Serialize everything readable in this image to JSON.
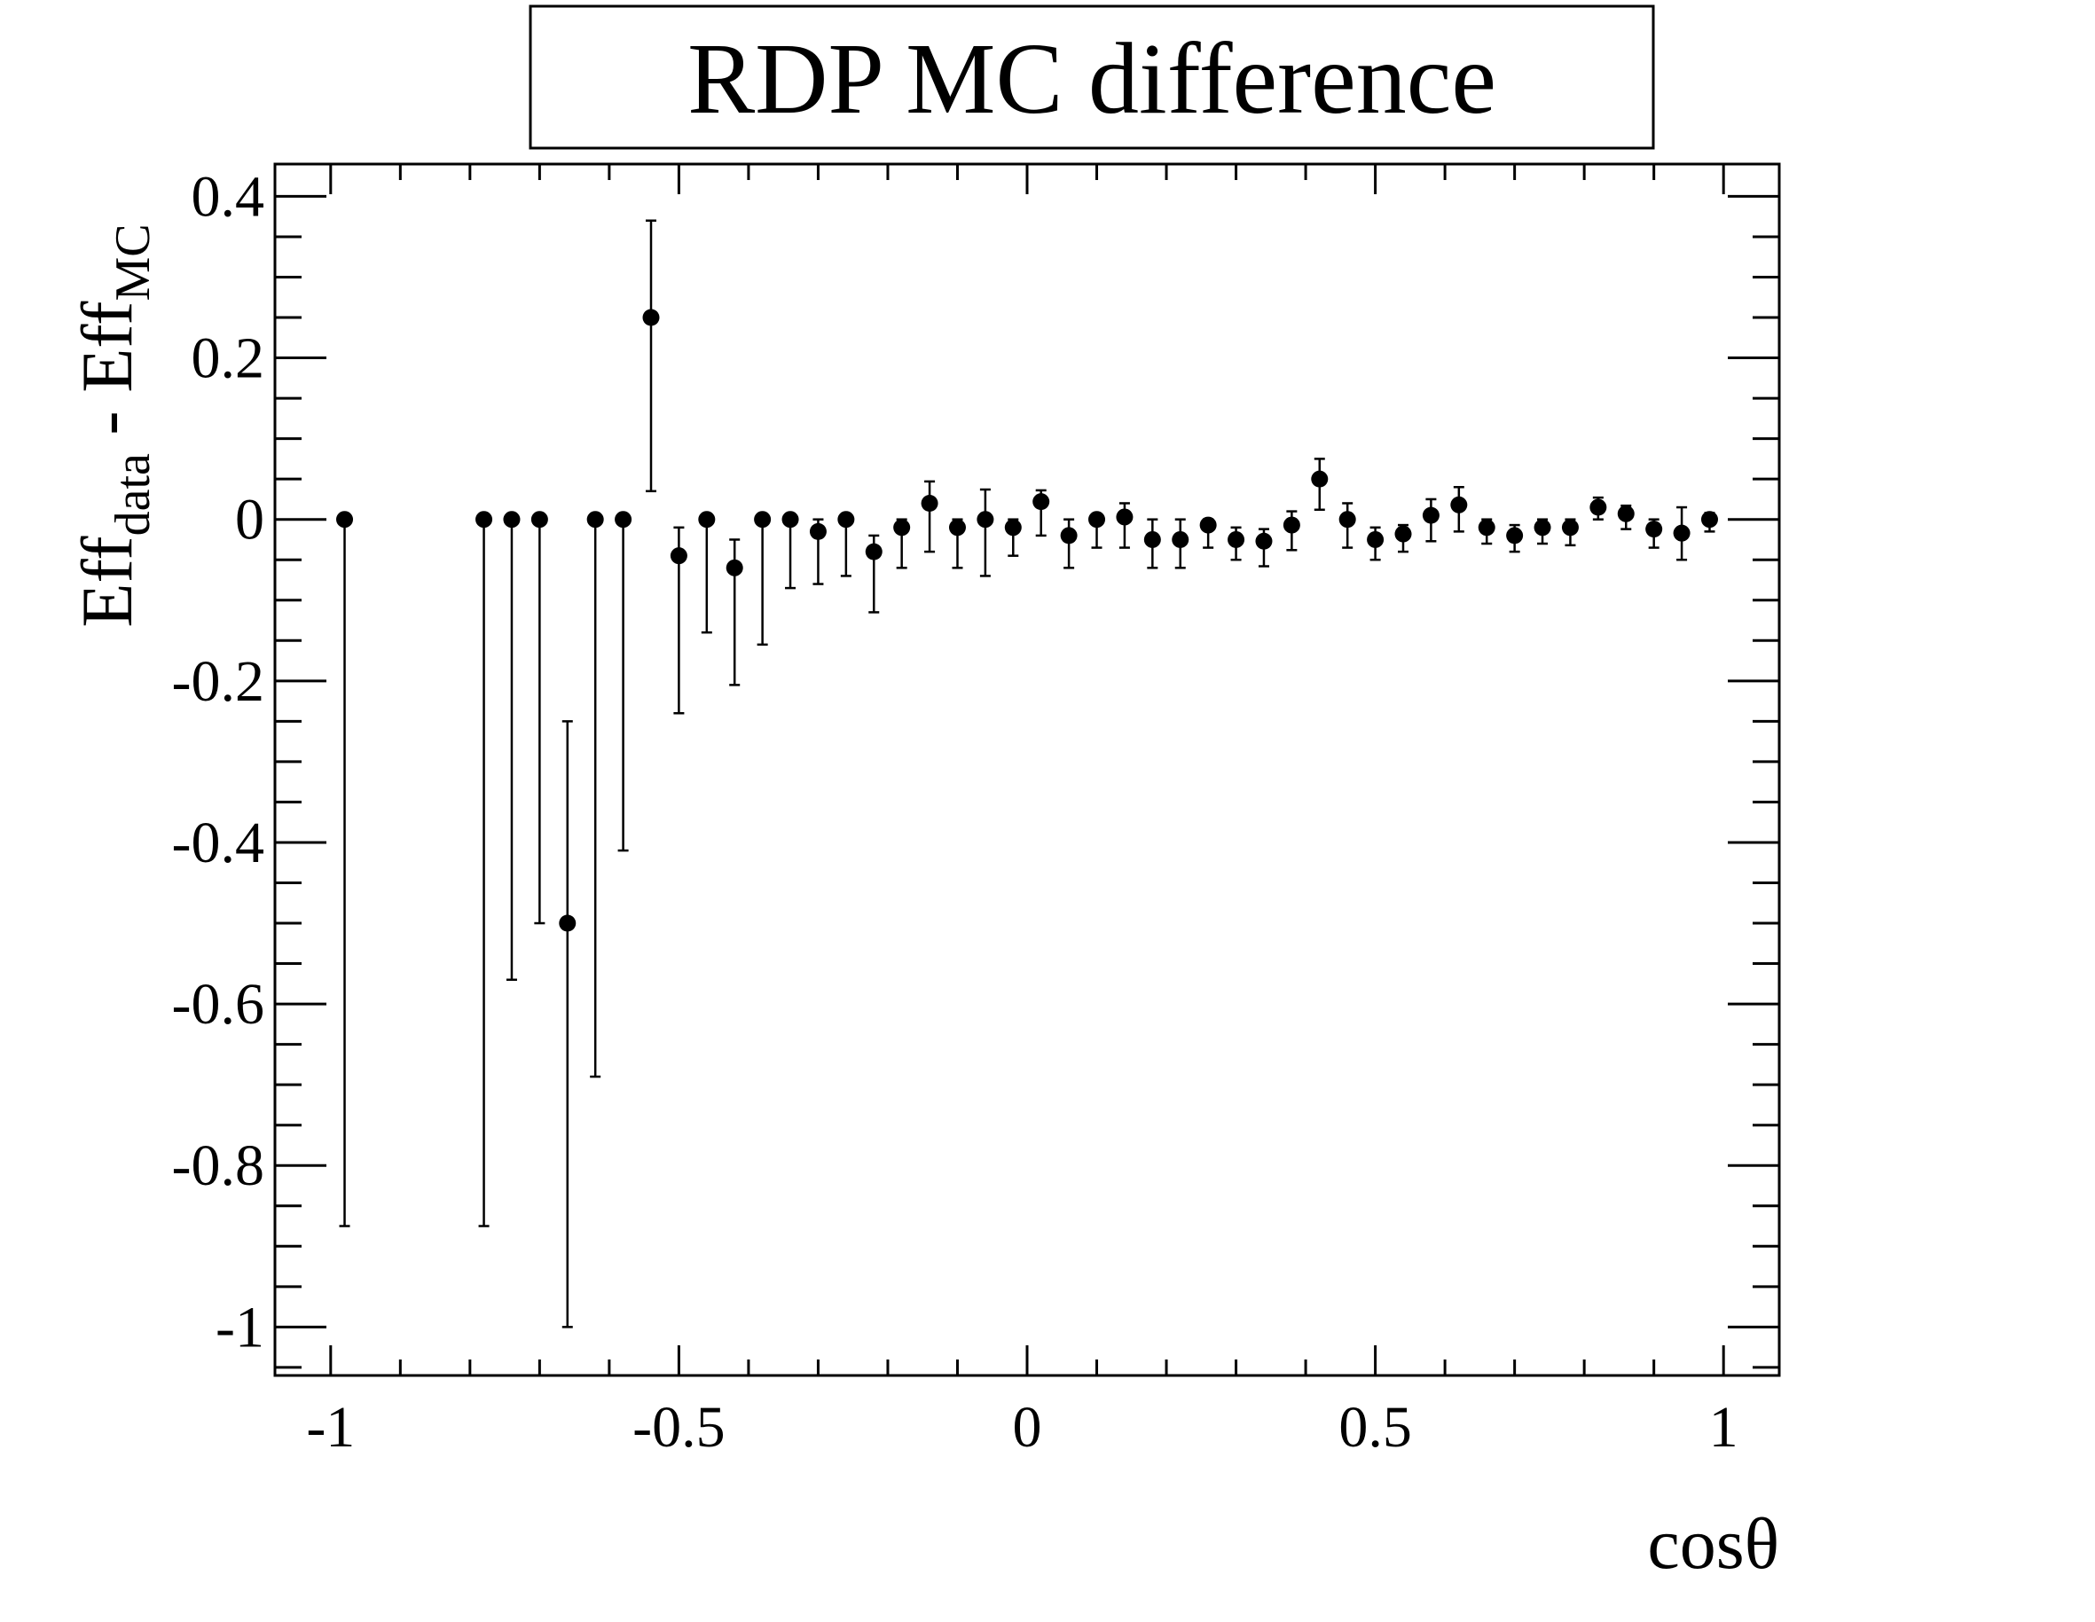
{
  "chart_data": {
    "type": "scatter",
    "title": "RDP MC difference",
    "xlabel": "cosθ",
    "ylabel": {
      "base1": "Eff",
      "sub1": "data",
      "sep": " - ",
      "base2": "Eff",
      "sub2": "MC"
    },
    "xlim": [
      -1.08,
      1.08
    ],
    "ylim": [
      -1.06,
      0.44
    ],
    "x_ticks": [
      -1,
      -0.5,
      0,
      0.5,
      1
    ],
    "x_tick_labels": [
      "-1",
      "-0.5",
      "0",
      "0.5",
      "1"
    ],
    "y_ticks": [
      -1,
      -0.8,
      -0.6,
      -0.4,
      -0.2,
      0,
      0.2,
      0.4
    ],
    "y_tick_labels": [
      "-1",
      "-0.8",
      "-0.6",
      "-0.4",
      "-0.2",
      "0",
      "0.2",
      "0.4"
    ],
    "grid": false,
    "marker_color": "#000000",
    "series": [
      {
        "points": [
          {
            "x": -0.98,
            "y": 0.0,
            "lo": -0.875,
            "hi": 0.0
          },
          {
            "x": -0.78,
            "y": 0.0,
            "lo": -0.875,
            "hi": 0.0
          },
          {
            "x": -0.74,
            "y": 0.0,
            "lo": -0.57,
            "hi": 0.0
          },
          {
            "x": -0.7,
            "y": 0.0,
            "lo": -0.5,
            "hi": 0.0
          },
          {
            "x": -0.66,
            "y": -0.5,
            "lo": -1.0,
            "hi": -0.25
          },
          {
            "x": -0.62,
            "y": 0.0,
            "lo": -0.69,
            "hi": 0.0
          },
          {
            "x": -0.58,
            "y": 0.0,
            "lo": -0.41,
            "hi": 0.0
          },
          {
            "x": -0.54,
            "y": 0.25,
            "lo": 0.035,
            "hi": 0.37
          },
          {
            "x": -0.5,
            "y": -0.045,
            "lo": -0.24,
            "hi": -0.01
          },
          {
            "x": -0.46,
            "y": 0.0,
            "lo": -0.14,
            "hi": 0.0
          },
          {
            "x": -0.42,
            "y": -0.06,
            "lo": -0.205,
            "hi": -0.025
          },
          {
            "x": -0.38,
            "y": 0.0,
            "lo": -0.155,
            "hi": 0.0
          },
          {
            "x": -0.34,
            "y": 0.0,
            "lo": -0.085,
            "hi": 0.0
          },
          {
            "x": -0.3,
            "y": -0.015,
            "lo": -0.08,
            "hi": 0.0
          },
          {
            "x": -0.26,
            "y": 0.0,
            "lo": -0.07,
            "hi": 0.0
          },
          {
            "x": -0.22,
            "y": -0.04,
            "lo": -0.115,
            "hi": -0.02
          },
          {
            "x": -0.18,
            "y": -0.01,
            "lo": -0.06,
            "hi": 0.0
          },
          {
            "x": -0.14,
            "y": 0.02,
            "lo": -0.04,
            "hi": 0.047
          },
          {
            "x": -0.1,
            "y": -0.01,
            "lo": -0.06,
            "hi": 0.0
          },
          {
            "x": -0.06,
            "y": 0.0,
            "lo": -0.07,
            "hi": 0.037
          },
          {
            "x": -0.02,
            "y": -0.01,
            "lo": -0.045,
            "hi": 0.0
          },
          {
            "x": 0.02,
            "y": 0.022,
            "lo": -0.02,
            "hi": 0.036
          },
          {
            "x": 0.06,
            "y": -0.02,
            "lo": -0.06,
            "hi": 0.0
          },
          {
            "x": 0.1,
            "y": 0.0,
            "lo": -0.035,
            "hi": 0.0
          },
          {
            "x": 0.14,
            "y": 0.003,
            "lo": -0.035,
            "hi": 0.02
          },
          {
            "x": 0.18,
            "y": -0.025,
            "lo": -0.06,
            "hi": 0.0
          },
          {
            "x": 0.22,
            "y": -0.025,
            "lo": -0.06,
            "hi": 0.0
          },
          {
            "x": 0.26,
            "y": -0.007,
            "lo": -0.035,
            "hi": 0.0
          },
          {
            "x": 0.3,
            "y": -0.025,
            "lo": -0.05,
            "hi": -0.01
          },
          {
            "x": 0.34,
            "y": -0.027,
            "lo": -0.058,
            "hi": -0.012
          },
          {
            "x": 0.38,
            "y": -0.007,
            "lo": -0.038,
            "hi": 0.01
          },
          {
            "x": 0.42,
            "y": 0.05,
            "lo": 0.012,
            "hi": 0.075
          },
          {
            "x": 0.46,
            "y": 0.0,
            "lo": -0.035,
            "hi": 0.02
          },
          {
            "x": 0.5,
            "y": -0.025,
            "lo": -0.05,
            "hi": -0.01
          },
          {
            "x": 0.54,
            "y": -0.018,
            "lo": -0.04,
            "hi": -0.007
          },
          {
            "x": 0.58,
            "y": 0.005,
            "lo": -0.027,
            "hi": 0.025
          },
          {
            "x": 0.62,
            "y": 0.018,
            "lo": -0.015,
            "hi": 0.04
          },
          {
            "x": 0.66,
            "y": -0.01,
            "lo": -0.03,
            "hi": 0.0
          },
          {
            "x": 0.7,
            "y": -0.02,
            "lo": -0.04,
            "hi": -0.007
          },
          {
            "x": 0.74,
            "y": -0.01,
            "lo": -0.03,
            "hi": 0.0
          },
          {
            "x": 0.78,
            "y": -0.01,
            "lo": -0.032,
            "hi": 0.0
          },
          {
            "x": 0.82,
            "y": 0.015,
            "lo": 0.0,
            "hi": 0.027
          },
          {
            "x": 0.86,
            "y": 0.007,
            "lo": -0.012,
            "hi": 0.017
          },
          {
            "x": 0.9,
            "y": -0.012,
            "lo": -0.035,
            "hi": 0.0
          },
          {
            "x": 0.94,
            "y": -0.017,
            "lo": -0.05,
            "hi": 0.015
          },
          {
            "x": 0.98,
            "y": 0.0,
            "lo": -0.015,
            "hi": 0.008
          }
        ]
      }
    ]
  }
}
